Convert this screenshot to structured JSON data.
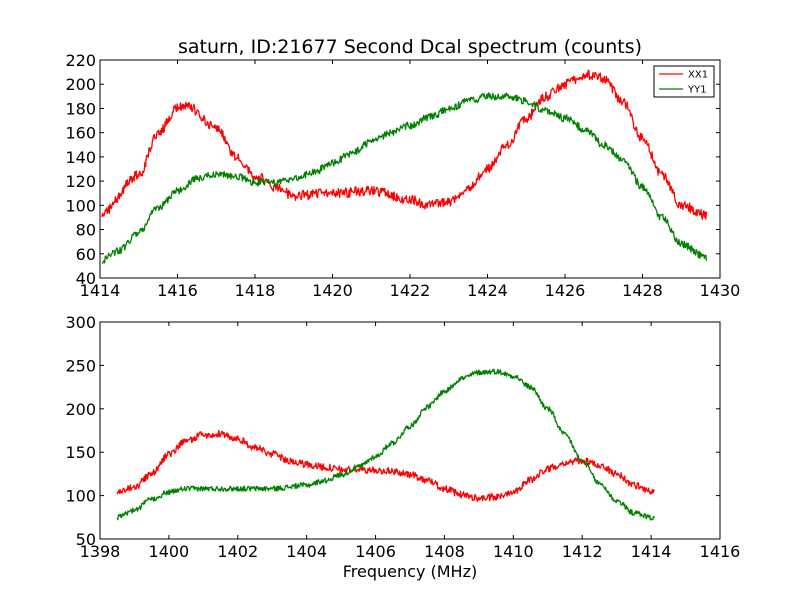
{
  "chart_data": [
    {
      "type": "line",
      "title": "saturn, ID:21677 Second Dcal spectrum (counts)",
      "xlabel": "",
      "ylabel": "",
      "xlim": [
        1414,
        1430
      ],
      "ylim": [
        40,
        220
      ],
      "xticks": [
        1414,
        1416,
        1418,
        1420,
        1422,
        1424,
        1426,
        1428,
        1430
      ],
      "yticks": [
        40,
        60,
        80,
        100,
        120,
        140,
        160,
        180,
        200,
        220
      ],
      "xtick_labels": [
        "1414",
        "1416",
        "1418",
        "1420",
        "1422",
        "1424",
        "1426",
        "1428",
        "1430"
      ],
      "ytick_labels": [
        "40",
        "60",
        "80",
        "100",
        "120",
        "140",
        "160",
        "180",
        "200",
        "220"
      ],
      "grid": false,
      "legend": "top-right",
      "x_range": [
        1414.05,
        1429.65
      ],
      "series": [
        {
          "name": "XX1",
          "color": "#ff0000",
          "noise": 4,
          "control": [
            [
              1414.05,
              94
            ],
            [
              1415.0,
              125
            ],
            [
              1415.5,
              160
            ],
            [
              1416.0,
              180
            ],
            [
              1416.2,
              183
            ],
            [
              1417.0,
              165
            ],
            [
              1417.5,
              140
            ],
            [
              1418.0,
              125
            ],
            [
              1418.5,
              115
            ],
            [
              1419.0,
              108
            ],
            [
              1420.0,
              110
            ],
            [
              1421.0,
              112
            ],
            [
              1422.0,
              105
            ],
            [
              1422.5,
              100
            ],
            [
              1423.0,
              103
            ],
            [
              1423.5,
              115
            ],
            [
              1424.0,
              130
            ],
            [
              1424.5,
              150
            ],
            [
              1425.0,
              172
            ],
            [
              1425.5,
              190
            ],
            [
              1426.0,
              200
            ],
            [
              1426.5,
              208
            ],
            [
              1427.0,
              205
            ],
            [
              1427.5,
              185
            ],
            [
              1428.0,
              155
            ],
            [
              1428.5,
              125
            ],
            [
              1429.0,
              100
            ],
            [
              1429.65,
              92
            ]
          ]
        },
        {
          "name": "YY1",
          "color": "#008000",
          "noise": 3,
          "control": [
            [
              1414.05,
              55
            ],
            [
              1414.5,
              63
            ],
            [
              1415.0,
              78
            ],
            [
              1415.5,
              98
            ],
            [
              1416.0,
              112
            ],
            [
              1416.5,
              122
            ],
            [
              1417.0,
              126
            ],
            [
              1417.5,
              124
            ],
            [
              1418.0,
              119
            ],
            [
              1418.5,
              119
            ],
            [
              1419.0,
              122
            ],
            [
              1419.5,
              127
            ],
            [
              1420.0,
              135
            ],
            [
              1420.5,
              143
            ],
            [
              1421.0,
              152
            ],
            [
              1421.5,
              160
            ],
            [
              1422.0,
              166
            ],
            [
              1422.5,
              173
            ],
            [
              1423.0,
              179
            ],
            [
              1423.5,
              186
            ],
            [
              1424.0,
              190
            ],
            [
              1424.5,
              190
            ],
            [
              1425.0,
              186
            ],
            [
              1425.5,
              178
            ],
            [
              1426.0,
              172
            ],
            [
              1426.5,
              163
            ],
            [
              1427.0,
              150
            ],
            [
              1427.5,
              138
            ],
            [
              1428.0,
              115
            ],
            [
              1428.5,
              90
            ],
            [
              1429.0,
              68
            ],
            [
              1429.65,
              57
            ]
          ]
        }
      ]
    },
    {
      "type": "line",
      "title": "",
      "xlabel": "Frequency (MHz)",
      "ylabel": "",
      "xlim": [
        1398,
        1416
      ],
      "ylim": [
        50,
        300
      ],
      "xticks": [
        1398,
        1400,
        1402,
        1404,
        1406,
        1408,
        1410,
        1412,
        1414,
        1416
      ],
      "yticks": [
        50,
        100,
        150,
        200,
        250,
        300
      ],
      "xtick_labels": [
        "1398",
        "1400",
        "1402",
        "1404",
        "1406",
        "1408",
        "1410",
        "1412",
        "1414",
        "1416"
      ],
      "ytick_labels": [
        "50",
        "100",
        "150",
        "200",
        "250",
        "300"
      ],
      "grid": false,
      "legend": "none",
      "x_range": [
        1398.5,
        1414.1
      ],
      "series": [
        {
          "color": "#ff0000",
          "noise": 4,
          "control": [
            [
              1398.5,
              103
            ],
            [
              1399.0,
              110
            ],
            [
              1399.5,
              125
            ],
            [
              1400.0,
              148
            ],
            [
              1400.5,
              163
            ],
            [
              1401.0,
              170
            ],
            [
              1401.5,
              171
            ],
            [
              1402.0,
              165
            ],
            [
              1402.5,
              155
            ],
            [
              1403.0,
              148
            ],
            [
              1403.5,
              140
            ],
            [
              1404.0,
              136
            ],
            [
              1404.5,
              133
            ],
            [
              1405.0,
              130
            ],
            [
              1405.5,
              130
            ],
            [
              1406.0,
              129
            ],
            [
              1406.5,
              128
            ],
            [
              1407.0,
              124
            ],
            [
              1407.5,
              118
            ],
            [
              1408.0,
              108
            ],
            [
              1408.5,
              101
            ],
            [
              1409.0,
              97
            ],
            [
              1409.5,
              98
            ],
            [
              1410.0,
              105
            ],
            [
              1410.5,
              118
            ],
            [
              1411.0,
              131
            ],
            [
              1411.5,
              138
            ],
            [
              1412.0,
              140
            ],
            [
              1412.5,
              135
            ],
            [
              1413.0,
              125
            ],
            [
              1413.5,
              112
            ],
            [
              1414.1,
              104
            ]
          ]
        },
        {
          "color": "#008000",
          "noise": 3,
          "control": [
            [
              1398.5,
              75
            ],
            [
              1399.0,
              83
            ],
            [
              1399.5,
              96
            ],
            [
              1400.0,
              104
            ],
            [
              1400.5,
              108
            ],
            [
              1401.0,
              108
            ],
            [
              1402.0,
              108
            ],
            [
              1403.0,
              108
            ],
            [
              1404.0,
              112
            ],
            [
              1404.5,
              117
            ],
            [
              1405.0,
              124
            ],
            [
              1405.5,
              133
            ],
            [
              1406.0,
              145
            ],
            [
              1406.5,
              161
            ],
            [
              1407.0,
              180
            ],
            [
              1407.5,
              202
            ],
            [
              1408.0,
              220
            ],
            [
              1408.5,
              235
            ],
            [
              1409.0,
              242
            ],
            [
              1409.5,
              243
            ],
            [
              1410.0,
              238
            ],
            [
              1410.5,
              225
            ],
            [
              1411.0,
              200
            ],
            [
              1411.5,
              170
            ],
            [
              1412.0,
              140
            ],
            [
              1412.5,
              114
            ],
            [
              1413.0,
              94
            ],
            [
              1413.5,
              80
            ],
            [
              1414.1,
              74
            ]
          ]
        }
      ]
    }
  ]
}
